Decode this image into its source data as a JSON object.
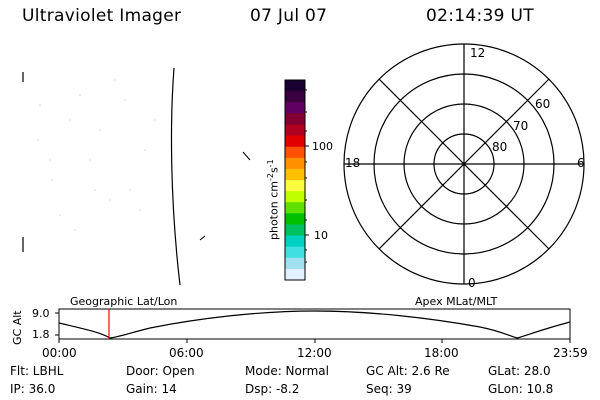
{
  "header": {
    "title": "Ultraviolet Imager",
    "date": "07 Jul 07",
    "time": "02:14:39 UT"
  },
  "colorbar": {
    "label": "photon cm",
    "label_exp1": "-2",
    "label_s": "s",
    "label_exp2": "-1",
    "ticks": [
      "100",
      "10"
    ],
    "colors": [
      "#1a0030",
      "#3a0040",
      "#600060",
      "#800030",
      "#b00020",
      "#e00000",
      "#ff5000",
      "#ff9000",
      "#ffc000",
      "#ffff40",
      "#c0ff00",
      "#60e000",
      "#00c000",
      "#00c060",
      "#00d0c0",
      "#40e0e0",
      "#a0e0f0",
      "#e0f0ff"
    ]
  },
  "polar_plot": {
    "hour_labels": {
      "top": "12",
      "bottom": "0",
      "left": "18",
      "right": "6"
    },
    "lat_labels": [
      "60",
      "70",
      "80"
    ]
  },
  "timeline": {
    "ylabel": "GC Alt",
    "y_ticks": [
      "9.0",
      "1.8"
    ],
    "left_title": "Geographic Lat/Lon",
    "right_title": "Apex MLat/MLT",
    "x_ticks": [
      "00:00",
      "06:00",
      "12:00",
      "18:00",
      "23:59"
    ],
    "marker_color": "#ff0000"
  },
  "status": {
    "row1": {
      "flt": "Flt: LBHL",
      "door": "Door: Open",
      "mode": "Mode: Normal",
      "gcalt": "GC Alt: 2.6 Re",
      "glat": "GLat:  28.0"
    },
    "row2": {
      "ip": "IP: 36.0",
      "gain": "Gain: 14",
      "dsp": "Dsp:   -8.2",
      "seq": "Seq: 39",
      "glon": "GLon:  10.8"
    }
  }
}
